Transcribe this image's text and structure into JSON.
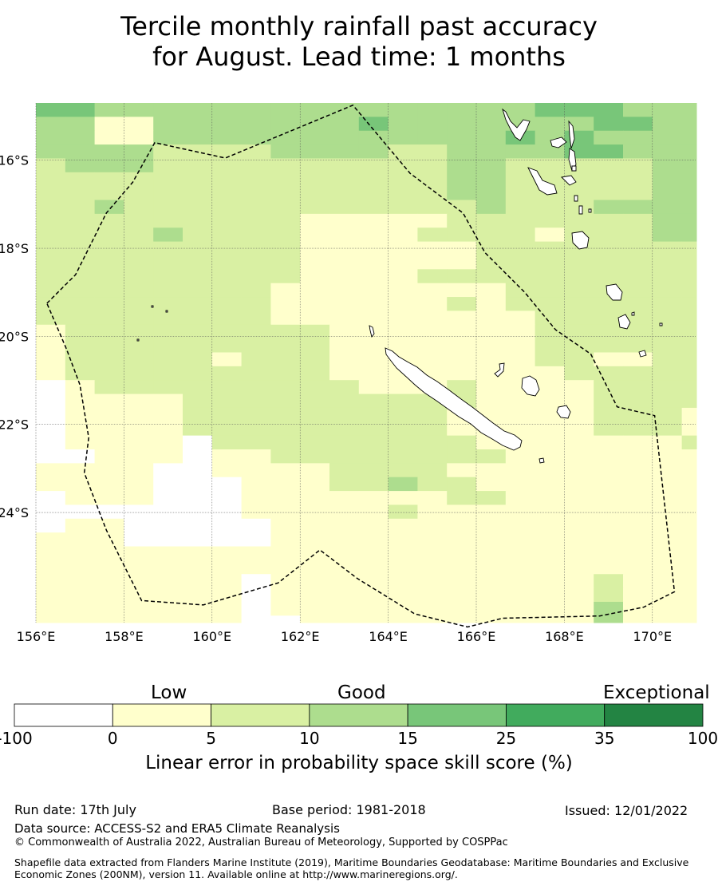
{
  "title": {
    "line1": "Tercile monthly rainfall past accuracy",
    "line2": "for August. Lead time: 1 months"
  },
  "map": {
    "lon_range": [
      156,
      171
    ],
    "lat_range": [
      -26.5,
      -14.7
    ],
    "lon_ticks": [
      "156°E",
      "158°E",
      "160°E",
      "162°E",
      "164°E",
      "166°E",
      "168°E",
      "170°E"
    ],
    "lat_ticks": [
      "16°S",
      "18°S",
      "20°S",
      "22°S",
      "24°S"
    ],
    "lon_tick_values": [
      156,
      158,
      160,
      162,
      164,
      166,
      168,
      170
    ],
    "lat_tick_values": [
      -16,
      -18,
      -20,
      -22,
      -24
    ],
    "grid": "dotted",
    "boundary_style": "dashed",
    "boundary_lonlat": [
      [
        156.25,
        -19.25
      ],
      [
        156.9,
        -18.6
      ],
      [
        157.6,
        -17.2
      ],
      [
        158.2,
        -16.5
      ],
      [
        158.7,
        -15.6
      ],
      [
        160.3,
        -15.95
      ],
      [
        163.2,
        -14.75
      ],
      [
        164.5,
        -16.3
      ],
      [
        165.7,
        -17.2
      ],
      [
        166.2,
        -18.1
      ],
      [
        167.1,
        -19.0
      ],
      [
        167.8,
        -19.85
      ],
      [
        168.6,
        -20.4
      ],
      [
        169.2,
        -21.6
      ],
      [
        170.05,
        -21.8
      ],
      [
        170.5,
        -25.8
      ],
      [
        169.8,
        -26.15
      ],
      [
        168.8,
        -26.35
      ],
      [
        166.6,
        -26.4
      ],
      [
        165.8,
        -26.6
      ],
      [
        164.6,
        -26.3
      ],
      [
        163.3,
        -25.5
      ],
      [
        162.45,
        -24.85
      ],
      [
        161.5,
        -25.6
      ],
      [
        159.8,
        -26.1
      ],
      [
        158.4,
        -26.0
      ],
      [
        157.6,
        -24.4
      ],
      [
        157.1,
        -23.1
      ],
      [
        157.2,
        -22.3
      ],
      [
        157.0,
        -21.1
      ],
      [
        156.7,
        -20.3
      ],
      [
        156.25,
        -19.25
      ]
    ]
  },
  "colorbar": {
    "category_labels": [
      "Low",
      "Good",
      "Exceptional"
    ],
    "bounds": [
      -100,
      0,
      5,
      10,
      15,
      25,
      35,
      100
    ],
    "tick_labels": [
      "-100",
      "0",
      "5",
      "10",
      "15",
      "25",
      "35",
      "100"
    ],
    "colors": [
      "#ffffff",
      "#ffffcc",
      "#d9f0a3",
      "#addd8e",
      "#78c679",
      "#41ab5d",
      "#238443"
    ],
    "title": "Linear error in probability space skill score (%)"
  },
  "footer": {
    "run_date": "Run date: 17th July",
    "base_period": "Base period: 1981-2018",
    "issued": "Issued: 12/01/2022",
    "data_source": "Data source: ACCESS-S2 and ERA5 Climate Reanalysis",
    "copyright": "© Commonwealth of Australia 2022, Australian Bureau of Meteorology, Supported by COSPPac",
    "shapefile": "Shapefile data extracted from Flanders Marine Institute (2019), Maritime Boundaries Geodatabase: Maritime Boundaries and Exclusive Economic Zones (200NM), version 11. Available online at http://www.marineregions.org/."
  },
  "skill_grid": {
    "note": "category index per cell: 0=white(<0),1=0-5,2=5-10,3=10-15,4=15-25",
    "rows": [
      "44333333333333333444333",
      "33113333333433333334433",
      "33113333333333334343333",
      "33332222333322333344333",
      "23332222222222332222233",
      "22222222222222332222233",
      "22222222222222332222233",
      "22322222222222232223333",
      "22222222211111222222233",
      "22223222211112222122233",
      "22222222211111122222222",
      "22222222211111122222222",
      "22222222211112222222222",
      "22222222111111112222222",
      "22222222111111212222222",
      "22222222111111111222222",
      "12222222221111111222222",
      "12222222221111111222222",
      "12222212221111111221122",
      "12222222221111111122222",
      "01222222222111211112222",
      "01111222222222211112222",
      "01111222222222111112221",
      "01111222222222111112221",
      "01111022222222211111112",
      "00111011222222221111111",
      "11110011112222111111111",
      "11110001112232211111111",
      "01110001111111221111111",
      "00000001111121111111111",
      "01100000111111111111111",
      "11100000111111111111111",
      "11111111111111111111111",
      "11111111111111111111111",
      "11111110111111111112111",
      "11111110111111111112111",
      "11111110111111111113111",
      "11111110011111111113111"
    ]
  }
}
